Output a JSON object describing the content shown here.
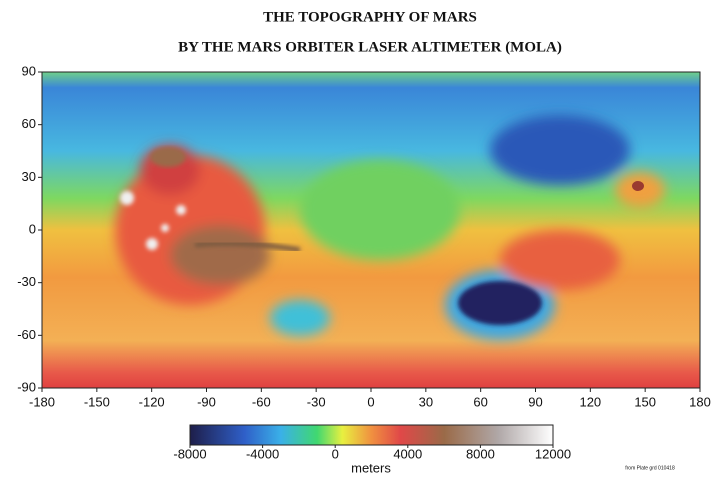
{
  "title": [
    "THE TOPOGRAPHY OF MARS",
    "BY THE MARS ORBITER LASER ALTIMETER (MOLA)"
  ],
  "map": {
    "xlim": [
      -180,
      180
    ],
    "ylim": [
      -90,
      90
    ],
    "xticks": [
      -180,
      -150,
      -120,
      -90,
      -60,
      -30,
      0,
      30,
      60,
      90,
      120,
      150,
      180
    ],
    "yticks": [
      -90,
      -60,
      -30,
      0,
      30,
      60,
      90
    ]
  },
  "colorbar": {
    "lim": [
      -8000,
      12000
    ],
    "ticks": [
      -8000,
      -4000,
      0,
      4000,
      8000,
      12000
    ],
    "label": "meters"
  },
  "credit": "from Plate grd 010418"
}
